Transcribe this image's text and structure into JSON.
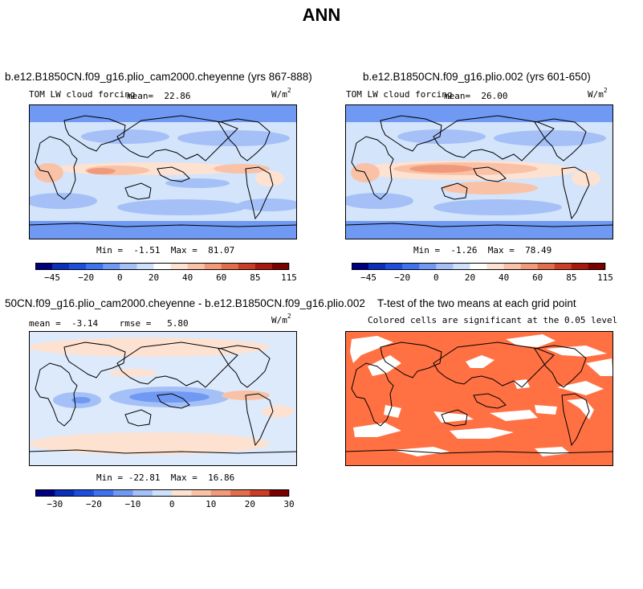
{
  "page": {
    "title": "ANN"
  },
  "panels": [
    {
      "title": "b.e12.B1850CN.f09_g16.plio_cam2000.cheyenne (yrs 867-888)",
      "left_label": "TOM LW cloud forcing",
      "mean_label": "mean=  22.86",
      "units": "W/m",
      "units_sup": "2",
      "stats": "Min =  -1.51  Max =  81.07"
    },
    {
      "title": "b.e12.B1850CN.f09_g16.plio.002 (yrs 601-650)",
      "left_label": "TOM LW cloud forcing",
      "mean_label": "mean=  26.00",
      "units": "W/m",
      "units_sup": "2",
      "stats": "Min =  -1.26  Max =  78.49"
    },
    {
      "title": "50CN.f09_g16.plio_cam2000.cheyenne - b.e12.B1850CN.f09_g16.plio.002",
      "left_label": "mean =  -3.14    rmse =   5.80",
      "units": "W/m",
      "units_sup": "2",
      "stats": "Min = -22.81  Max =  16.86"
    },
    {
      "title": "T-test of the two means at each grid point",
      "subtitle": "Colored cells are significant at the 0.05 level"
    }
  ],
  "chart_data": [
    {
      "type": "heatmap",
      "title": "b.e12.B1850CN.f09_g16.plio_cam2000.cheyenne (yrs 867-888)",
      "variable": "TOM LW cloud forcing",
      "units": "W/m2",
      "mean": 22.86,
      "min": -1.51,
      "max": 81.07,
      "colorbar_levels": [
        -45,
        -30,
        -20,
        -10,
        0,
        10,
        20,
        30,
        40,
        50,
        60,
        70,
        85,
        100,
        115
      ],
      "colorbar_tick_labels": [
        "-45",
        "-20",
        "0",
        "20",
        "40",
        "60",
        "85",
        "115"
      ]
    },
    {
      "type": "heatmap",
      "title": "b.e12.B1850CN.f09_g16.plio.002 (yrs 601-650)",
      "variable": "TOM LW cloud forcing",
      "units": "W/m2",
      "mean": 26.0,
      "min": -1.26,
      "max": 78.49,
      "colorbar_levels": [
        -45,
        -30,
        -20,
        -10,
        0,
        10,
        20,
        30,
        40,
        50,
        60,
        70,
        85,
        100,
        115
      ],
      "colorbar_tick_labels": [
        "-45",
        "-20",
        "0",
        "20",
        "40",
        "60",
        "85",
        "115"
      ]
    },
    {
      "type": "heatmap",
      "title": "50CN.f09_g16.plio_cam2000.cheyenne - b.e12.B1850CN.f09_g16.plio.002",
      "units": "W/m2",
      "mean": -3.14,
      "rmse": 5.8,
      "min": -22.81,
      "max": 16.86,
      "colorbar_levels": [
        -30,
        -25,
        -20,
        -15,
        -10,
        -5,
        0,
        5,
        10,
        15,
        20,
        25,
        30
      ],
      "colorbar_tick_labels": [
        "-30",
        "-20",
        "-10",
        "0",
        "10",
        "20",
        "30"
      ]
    },
    {
      "type": "heatmap",
      "title": "T-test of the two means at each grid point",
      "subtitle": "Colored cells are significant at the 0.05 level",
      "significance_level": 0.05
    }
  ],
  "colors": {
    "cbar15": [
      "#00007f",
      "#0b2fb8",
      "#1d4fdc",
      "#3f73ee",
      "#7099f3",
      "#a4c0f7",
      "#cfe0fb",
      "#ffffff",
      "#fde2d2",
      "#f9c2a6",
      "#f19a7b",
      "#e06d4c",
      "#c93e26",
      "#a7180f",
      "#7a0000"
    ],
    "cbar13": [
      "#00007f",
      "#0b2fb8",
      "#1d4fdc",
      "#3f73ee",
      "#7099f3",
      "#a4c0f7",
      "#cfe0fb",
      "#fde2d2",
      "#f9c2a6",
      "#f19a7b",
      "#e06d4c",
      "#c93e26",
      "#7a0000"
    ],
    "significant": "#ff7043",
    "ocean_base": "#d3e4fb",
    "diff_base": "#ddeafc"
  }
}
